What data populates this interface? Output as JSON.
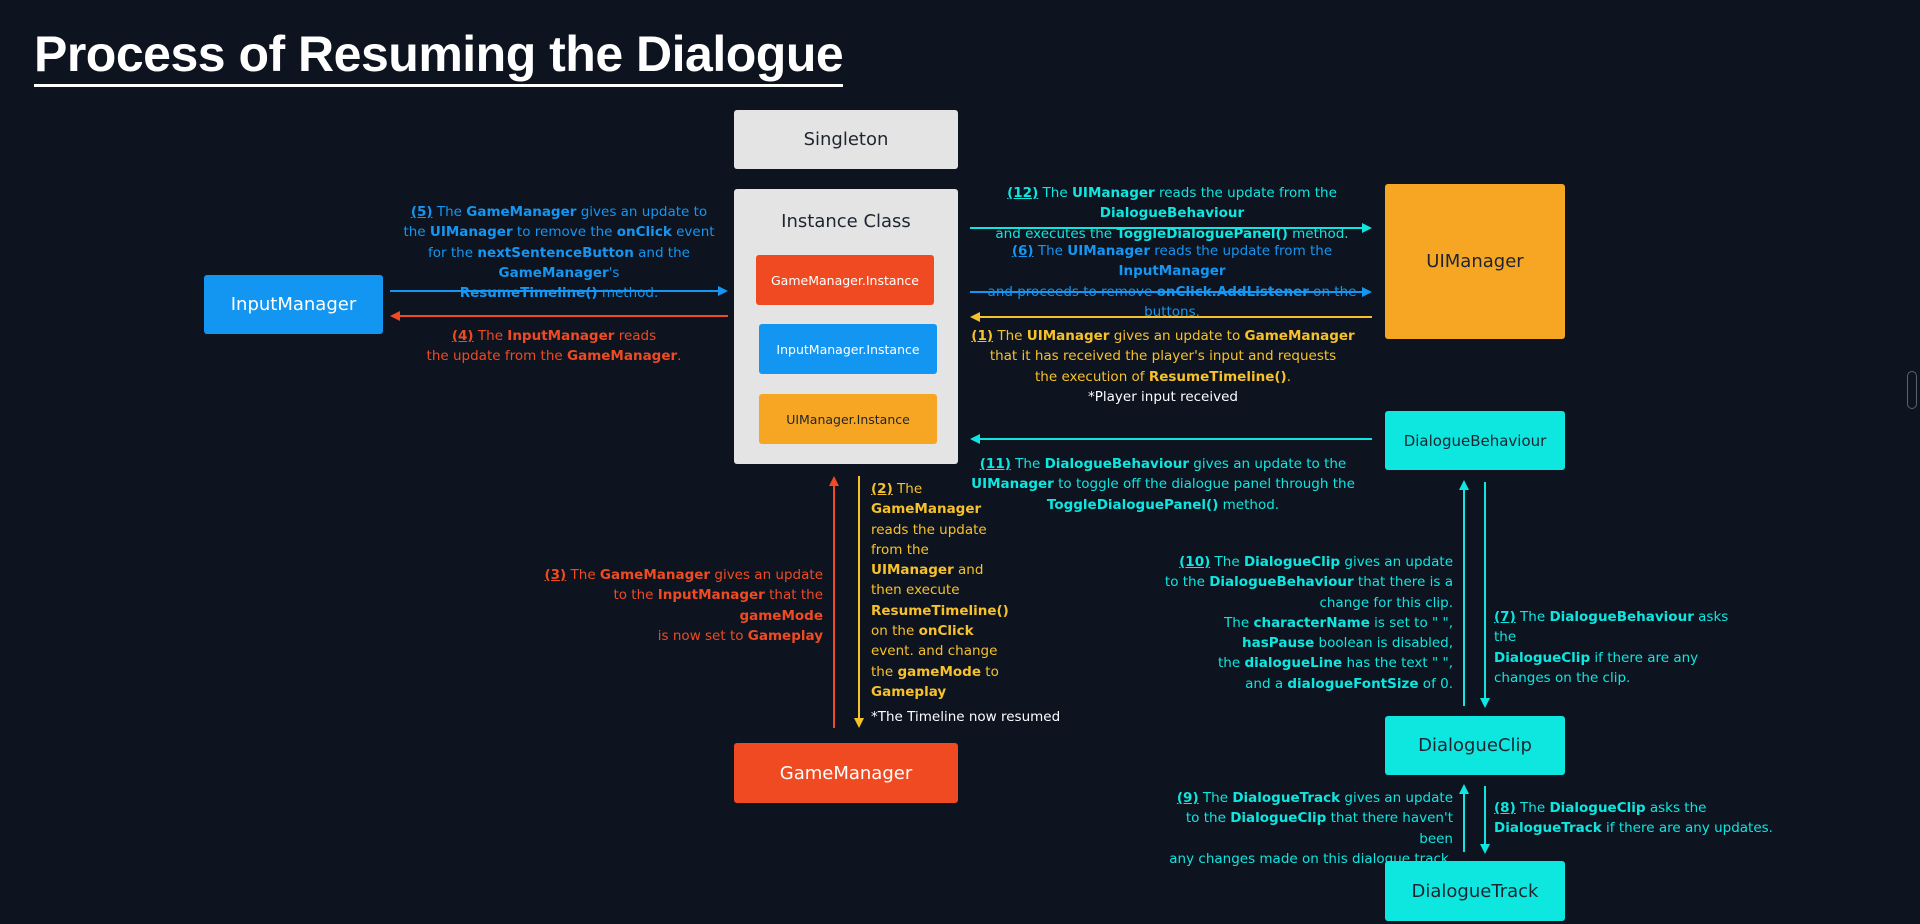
{
  "title": "Process of Resuming the Dialogue",
  "boxes": {
    "singleton": "Singleton",
    "instance_class": "Instance Class",
    "gm_instance": "GameManager.Instance",
    "im_instance": "InputManager.Instance",
    "ui_instance": "UIManager.Instance",
    "input_manager": "InputManager",
    "ui_manager": "UIManager",
    "dialogue_behaviour": "DialogueBehaviour",
    "dialogue_clip": "DialogueClip",
    "dialogue_track": "DialogueTrack",
    "game_manager": "GameManager"
  },
  "notes": {
    "n1": [
      "(1)",
      " The ",
      "UIManager",
      " gives an update to ",
      "GameManager",
      "that it has received the player's input and requests",
      "the execution of ",
      "ResumeTimeline()",
      ".",
      "*Player input received"
    ],
    "n2": [
      "(2)",
      " The",
      "GameManager",
      "reads the update",
      "from the",
      "UIManager",
      " and",
      "then execute",
      "ResumeTimeline()",
      "on the ",
      "onClick",
      "event. and change",
      "the ",
      "gameMode",
      " to",
      "Gameplay"
    ],
    "n2_after": "*The Timeline now resumed",
    "n3": [
      "(3)",
      " The ",
      "GameManager",
      " gives an update",
      "to the ",
      "InputManager",
      " that the ",
      "gameMode",
      "is now set to ",
      "Gameplay"
    ],
    "n4": [
      "(4)",
      " The ",
      "InputManager",
      " reads",
      "the update from the ",
      "GameManager",
      "."
    ],
    "n5": [
      "(5)",
      " The ",
      "GameManager",
      " gives an update to",
      "the ",
      "UIManager",
      " to remove the ",
      "onClick",
      " event",
      "for the ",
      "nextSentenceButton",
      " and the ",
      "GameManager",
      "'s",
      "ResumeTimeline()",
      " method."
    ],
    "n6": [
      "(6)",
      " The ",
      "UIManager",
      " reads the update from the ",
      "InputManager",
      "and proceeds to remove ",
      "onClick.AddListener",
      " on the buttons."
    ],
    "n7": [
      "(7)",
      " The ",
      "DialogueBehaviour",
      " asks the",
      "DialogueClip",
      " if there are any",
      "changes on the clip."
    ],
    "n8": [
      "(8)",
      " The ",
      "DialogueClip",
      " asks the",
      "DialogueTrack",
      " if there are any updates."
    ],
    "n9": [
      "(9)",
      " The ",
      "DialogueTrack",
      " gives an update",
      "to the ",
      "DialogueClip",
      " that there haven't been",
      "any changes made on this dialogue track."
    ],
    "n10": [
      "(10)",
      " The ",
      "DialogueClip",
      " gives an update",
      "to the ",
      "DialogueBehaviour",
      " that there is a",
      "change for this clip.",
      "The ",
      "characterName",
      " is set to \" \",",
      "hasPause",
      " boolean is disabled,",
      "the ",
      "dialogueLine",
      " has the text \" \",",
      "and a ",
      "dialogueFontSize",
      " of 0."
    ],
    "n11": [
      "(11)",
      " The ",
      "DialogueBehaviour",
      " gives an update to the",
      "UIManager",
      " to toggle off the dialogue panel through the",
      "ToggleDialoguePanel()",
      " method."
    ],
    "n12": [
      "(12)",
      " The ",
      "UIManager",
      " reads the update from the ",
      "DialogueBehaviour",
      "and executes the ",
      "ToggleDialoguePanel()",
      " method."
    ]
  },
  "colors": {
    "background": "#0d1420",
    "input_manager": "#1296f2",
    "game_manager": "#f04a22",
    "ui_manager": "#f6a623",
    "dialogue": "#0ee6e0",
    "singleton": "#e4e4e4"
  }
}
